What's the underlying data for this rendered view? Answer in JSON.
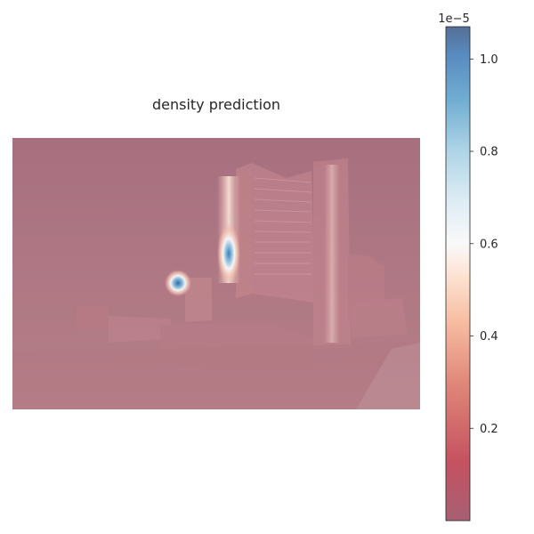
{
  "chart_data": {
    "type": "heatmap",
    "title": "density prediction",
    "colormap": "RdBu (reversed-to-blue-high), semi-transparent overlay on photo",
    "colorbar": {
      "min": 0.0,
      "max": 1.07,
      "offset_text": "1e−5",
      "ticks": [
        0.2,
        0.4,
        0.6,
        0.8,
        1.0
      ],
      "tick_labels": [
        "0.2",
        "0.4",
        "0.6",
        "0.8",
        "1.0"
      ],
      "color_stops": [
        "#67001f",
        "#b2182b",
        "#d6604d",
        "#f4a582",
        "#fddbc7",
        "#f7f7f7",
        "#d1e5f0",
        "#92c5de",
        "#4393c3",
        "#2166ac",
        "#053061"
      ]
    },
    "xlabel": "",
    "ylabel": "",
    "grid": false,
    "axes_visible": false,
    "hotspots": [
      {
        "description": "small isolated peak",
        "u": 0.41,
        "v": 0.54,
        "value": 0.95
      },
      {
        "description": "tower vertical streak",
        "u": 0.53,
        "v": 0.42,
        "value": 0.9
      }
    ]
  }
}
